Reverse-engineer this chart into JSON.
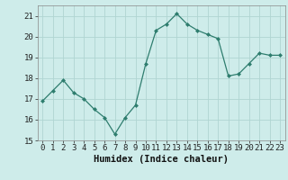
{
  "x": [
    0,
    1,
    2,
    3,
    4,
    5,
    6,
    7,
    8,
    9,
    10,
    11,
    12,
    13,
    14,
    15,
    16,
    17,
    18,
    19,
    20,
    21,
    22,
    23
  ],
  "y": [
    16.9,
    17.4,
    17.9,
    17.3,
    17.0,
    16.5,
    16.1,
    15.3,
    16.1,
    16.7,
    18.7,
    20.3,
    20.6,
    21.1,
    20.6,
    20.3,
    20.1,
    19.9,
    18.1,
    18.2,
    18.7,
    19.2,
    19.1,
    19.1
  ],
  "line_color": "#2e7d6e",
  "marker": "D",
  "marker_size": 2,
  "bg_color": "#ceecea",
  "grid_color": "#b0d5d2",
  "xlabel": "Humidex (Indice chaleur)",
  "ylim": [
    15,
    21.5
  ],
  "xlim": [
    -0.5,
    23.5
  ],
  "yticks": [
    15,
    16,
    17,
    18,
    19,
    20,
    21
  ],
  "xticks": [
    0,
    1,
    2,
    3,
    4,
    5,
    6,
    7,
    8,
    9,
    10,
    11,
    12,
    13,
    14,
    15,
    16,
    17,
    18,
    19,
    20,
    21,
    22,
    23
  ],
  "label_fontsize": 7.5,
  "tick_fontsize": 6.5
}
